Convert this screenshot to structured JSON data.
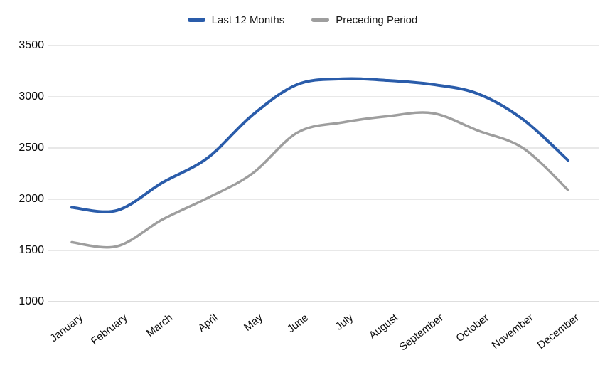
{
  "chart_data": {
    "type": "line",
    "title": "",
    "categories": [
      "January",
      "February",
      "March",
      "April",
      "May",
      "June",
      "July",
      "August",
      "September",
      "October",
      "November",
      "December"
    ],
    "series": [
      {
        "name": "Last 12 Months",
        "color": "#2a5caa",
        "values": [
          1920,
          1890,
          2160,
          2400,
          2820,
          3120,
          3175,
          3160,
          3120,
          3030,
          2780,
          2380
        ]
      },
      {
        "name": "Preceding Period",
        "color": "#9e9e9e",
        "values": [
          1580,
          1540,
          1800,
          2010,
          2250,
          2650,
          2750,
          2810,
          2840,
          2670,
          2500,
          2090
        ]
      }
    ],
    "ylim": [
      1000,
      3500
    ],
    "yticks": [
      1000,
      1500,
      2000,
      2500,
      3000,
      3500
    ],
    "grid": "horizontal",
    "legend_position": "top",
    "line_style": "smooth"
  },
  "colors": {
    "gridline": "#e0e0e0",
    "baseline": "#d4d4d4",
    "text": "#0d0d0d",
    "background": "#ffffff"
  }
}
